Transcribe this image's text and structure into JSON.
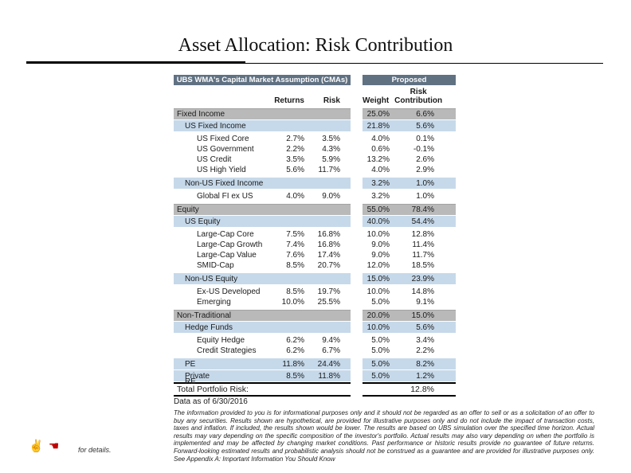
{
  "page": {
    "title": "Asset Allocation: Risk Contribution"
  },
  "table": {
    "left_header": "UBS WMA's Capital Market Assumption (CMAs)",
    "right_header": "Proposed",
    "columns": {
      "returns": "Returns",
      "risk": "Risk",
      "weight": "Weight",
      "risk_contribution": "Risk Contribution"
    },
    "rows": [
      {
        "label": "Fixed Income",
        "level": 0,
        "type": "section",
        "returns": "",
        "risk": "",
        "weight": "25.0%",
        "rc": "6.6%"
      },
      {
        "label": "US Fixed Income",
        "level": 1,
        "type": "subsection",
        "returns": "",
        "risk": "",
        "weight": "21.8%",
        "rc": "5.6%"
      },
      {
        "label": "US Fixed Core",
        "level": 2,
        "type": "item",
        "returns": "2.7%",
        "risk": "3.5%",
        "weight": "4.0%",
        "rc": "0.1%"
      },
      {
        "label": "US Government",
        "level": 2,
        "type": "item",
        "returns": "2.2%",
        "risk": "4.3%",
        "weight": "0.6%",
        "rc": "-0.1%"
      },
      {
        "label": "US Credit",
        "level": 2,
        "type": "item",
        "returns": "3.5%",
        "risk": "5.9%",
        "weight": "13.2%",
        "rc": "2.6%"
      },
      {
        "label": "US High Yield",
        "level": 2,
        "type": "item",
        "returns": "5.6%",
        "risk": "11.7%",
        "weight": "4.0%",
        "rc": "2.9%"
      },
      {
        "label": "Non-US Fixed Income",
        "level": 1,
        "type": "subsection",
        "returns": "",
        "risk": "",
        "weight": "3.2%",
        "rc": "1.0%"
      },
      {
        "label": "Global FI ex US",
        "level": 2,
        "type": "item",
        "returns": "4.0%",
        "risk": "9.0%",
        "weight": "3.2%",
        "rc": "1.0%"
      },
      {
        "label": "Equity",
        "level": 0,
        "type": "section",
        "returns": "",
        "risk": "",
        "weight": "55.0%",
        "rc": "78.4%"
      },
      {
        "label": "US Equity",
        "level": 1,
        "type": "subsection",
        "returns": "",
        "risk": "",
        "weight": "40.0%",
        "rc": "54.4%"
      },
      {
        "label": "Large-Cap Core",
        "level": 2,
        "type": "item",
        "returns": "7.5%",
        "risk": "16.8%",
        "weight": "10.0%",
        "rc": "12.8%"
      },
      {
        "label": "Large-Cap Growth",
        "level": 2,
        "type": "item",
        "returns": "7.4%",
        "risk": "16.8%",
        "weight": "9.0%",
        "rc": "11.4%"
      },
      {
        "label": "Large-Cap Value",
        "level": 2,
        "type": "item",
        "returns": "7.6%",
        "risk": "17.4%",
        "weight": "9.0%",
        "rc": "11.7%"
      },
      {
        "label": "SMID-Cap",
        "level": 2,
        "type": "item",
        "returns": "8.5%",
        "risk": "20.7%",
        "weight": "12.0%",
        "rc": "18.5%"
      },
      {
        "label": "Non-US Equity",
        "level": 1,
        "type": "subsection",
        "returns": "",
        "risk": "",
        "weight": "15.0%",
        "rc": "23.9%"
      },
      {
        "label": "Ex-US Developed",
        "level": 2,
        "type": "item",
        "returns": "8.5%",
        "risk": "19.7%",
        "weight": "10.0%",
        "rc": "14.8%"
      },
      {
        "label": "Emerging",
        "level": 2,
        "type": "item",
        "returns": "10.0%",
        "risk": "25.5%",
        "weight": "5.0%",
        "rc": "9.1%"
      },
      {
        "label": "Non-Traditional",
        "level": 0,
        "type": "section",
        "returns": "",
        "risk": "",
        "weight": "20.0%",
        "rc": "15.0%"
      },
      {
        "label": "Hedge Funds",
        "level": 1,
        "type": "subsection",
        "returns": "",
        "risk": "",
        "weight": "10.0%",
        "rc": "5.6%"
      },
      {
        "label": "Equity Hedge",
        "level": 2,
        "type": "item",
        "returns": "6.2%",
        "risk": "9.4%",
        "weight": "5.0%",
        "rc": "3.4%"
      },
      {
        "label": "Credit Strategies",
        "level": 2,
        "type": "item",
        "returns": "6.2%",
        "risk": "6.7%",
        "weight": "5.0%",
        "rc": "2.2%"
      },
      {
        "label": "PE",
        "level": 1,
        "type": "subsection",
        "returns": "11.8%",
        "risk": "24.4%",
        "weight": "5.0%",
        "rc": "8.2%"
      },
      {
        "label": "Private RE",
        "level": 1,
        "type": "subsection",
        "returns": "8.5%",
        "risk": "11.8%",
        "weight": "5.0%",
        "rc": "1.2%",
        "wrap": true
      }
    ],
    "total": {
      "label": "Total Portfolio Risk:",
      "rc": "12.8%"
    }
  },
  "footer": {
    "data_as_of": "Data as of 6/30/2016",
    "disclaimer": "The information provided to you is for informational purposes only and it should not be regarded as an offer to sell or as a solicitation of an offer to buy any securities. Results shown are hypothetical, are provided for illustrative purposes only and do not include the impact of transaction costs, taxes and inflation. If included, the results shown would be lower. The results are based on UBS simulation over the specified time horizon. Actual results may vary depending on the specific composition of the investor's portfolio. Actual results may also vary depending on when the portfolio is implemented and may be affected by changing market conditions. Past performance or historic results provide no guarantee of future returns. Forward-looking estimated results and probabilistic analysis should not be construed as a guarantee and are provided for illustrative purposes only. See Appendix A: Important Information You Should Know",
    "for_details": "for details.",
    "icons": {
      "victory": {
        "glyph": "✌",
        "color": "#000000"
      },
      "pointer": {
        "glyph": "☚",
        "color": "#c00000"
      }
    }
  },
  "colors": {
    "header_bar": "#607182",
    "header_bar_text": "#fdfdfd",
    "section_row": "#b9b9b9",
    "subsection_row": "#c6d9ea",
    "title_text": "#111111",
    "pointer_icon": "#c00000"
  }
}
